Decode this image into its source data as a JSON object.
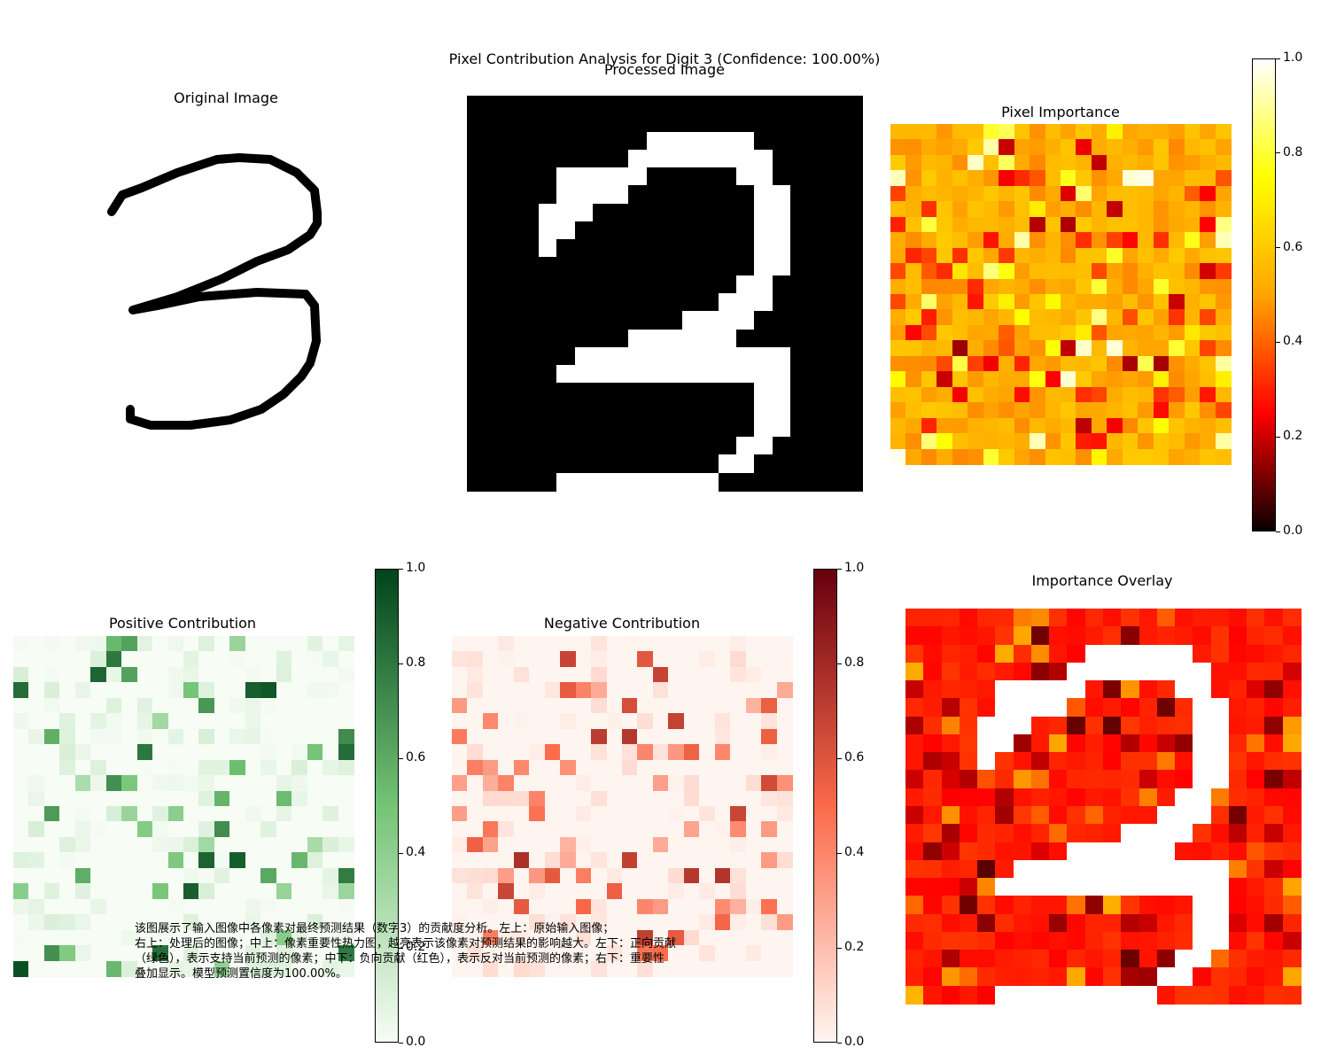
{
  "figure": {
    "suptitle": "Pixel Contribution Analysis for Digit 3 (Confidence: 100.00%)",
    "caption_lines": [
      "该图展示了输入图像中各像素对最终预测结果（数字3）的贡献度分析。左上：原始输入图像；",
      "右上：处理后的图像；中上：像素重要性热力图，越亮表示该像素对预测结果的影响越大。左下：正向贡献",
      "（绿色），表示支持当前预测的像素；中下：负向贡献（红色），表示反对当前预测的像素；右下：重要性",
      "叠加显示。模型预测置信度为100.00%。"
    ]
  },
  "panels": {
    "original_title": "Original Image",
    "processed_title": "Processed Image",
    "importance_title": "Pixel Importance",
    "positive_title": "Positive Contribution",
    "negative_title": "Negative Contribution",
    "overlay_title": "Importance Overlay"
  },
  "colorbar_ticks": [
    "0.0",
    "0.2",
    "0.4",
    "0.6",
    "0.8",
    "1.0"
  ],
  "colors": {
    "hot": [
      "#0a0000",
      "#ff0000",
      "#ffa500",
      "#ffff00",
      "#ffffff"
    ],
    "greens": [
      "#f7fcf5",
      "#74c476",
      "#00441b"
    ],
    "reds": [
      "#fff5f0",
      "#fb6a4a",
      "#67000d"
    ]
  },
  "chart_data": [
    {
      "type": "heatmap",
      "title": "Pixel Importance",
      "colormap": "hot",
      "clim": [
        0,
        1
      ],
      "grid_size": [
        22,
        22
      ],
      "description_values": "approximately 0.45–0.75 with scattered low (0.1–0.3) and high (0.85–1.0) pixels"
    },
    {
      "type": "heatmap",
      "title": "Positive Contribution",
      "colormap": "Greens",
      "clim": [
        0,
        1
      ],
      "grid_size": [
        22,
        22
      ]
    },
    {
      "type": "heatmap",
      "title": "Negative Contribution",
      "colormap": "Reds",
      "clim": [
        0,
        1
      ],
      "grid_size": [
        22,
        22
      ]
    },
    {
      "type": "heatmap",
      "title": "Importance Overlay",
      "colormap": "hot",
      "grid_size": [
        22,
        22
      ]
    }
  ]
}
